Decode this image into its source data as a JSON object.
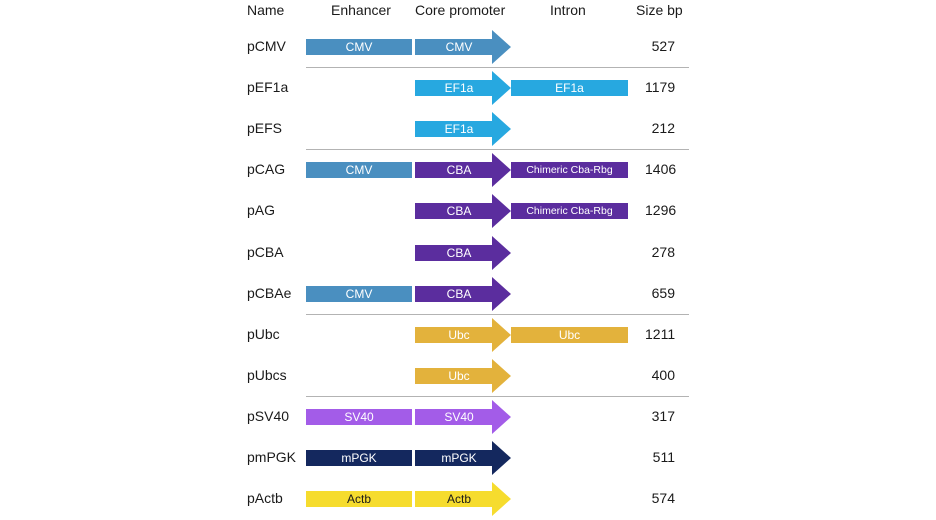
{
  "headers": {
    "name": "Name",
    "enhancer": "Enhancer",
    "core_promoter": "Core promoter",
    "intron": "Intron",
    "size": "Size bp"
  },
  "rows": [
    {
      "name": "pCMV",
      "enhancer": "CMV",
      "core": "CMV",
      "intron": "",
      "size": "527",
      "color": "#4a8fc0",
      "text_color": "#ffffff"
    },
    {
      "name": "pEF1a",
      "enhancer": "",
      "core": "EF1a",
      "intron": "EF1a",
      "size": "1179",
      "color": "#27a8e0",
      "text_color": "#ffffff"
    },
    {
      "name": "pEFS",
      "enhancer": "",
      "core": "EF1a",
      "intron": "",
      "size": "212",
      "color": "#27a8e0",
      "text_color": "#ffffff"
    },
    {
      "name": "pCAG",
      "enhancer": "CMV",
      "enhancer_color": "#4a8fc0",
      "core": "CBA",
      "intron": "Chimeric Cba-Rbg",
      "size": "1406",
      "color": "#5b2d9e",
      "text_color": "#ffffff"
    },
    {
      "name": "pAG",
      "enhancer": "",
      "core": "CBA",
      "intron": "Chimeric Cba-Rbg",
      "size": "1296",
      "color": "#5b2d9e",
      "text_color": "#ffffff"
    },
    {
      "name": "pCBA",
      "enhancer": "",
      "core": "CBA",
      "intron": "",
      "size": "278",
      "color": "#5b2d9e",
      "text_color": "#ffffff"
    },
    {
      "name": "pCBAe",
      "enhancer": "CMV",
      "enhancer_color": "#4a8fc0",
      "core": "CBA",
      "intron": "",
      "size": "659",
      "color": "#5b2d9e",
      "text_color": "#ffffff"
    },
    {
      "name": "pUbc",
      "enhancer": "",
      "core": "Ubc",
      "intron": "Ubc",
      "size": "1211",
      "color": "#e3b23c",
      "text_color": "#ffffff"
    },
    {
      "name": "pUbcs",
      "enhancer": "",
      "core": "Ubc",
      "intron": "",
      "size": "400",
      "color": "#e3b23c",
      "text_color": "#ffffff"
    },
    {
      "name": "pSV40",
      "enhancer": "SV40",
      "core": "SV40",
      "intron": "",
      "size": "317",
      "color": "#a35ce8",
      "text_color": "#ffffff"
    },
    {
      "name": "pmPGK",
      "enhancer": "mPGK",
      "core": "mPGK",
      "intron": "",
      "size": "511",
      "color": "#14285e",
      "text_color": "#ffffff"
    },
    {
      "name": "pActb",
      "enhancer": "Actb",
      "core": "Actb",
      "intron": "",
      "size": "574",
      "color": "#f6dc2e",
      "text_color": "#1a1a1a"
    }
  ],
  "group_separators_after_row": [
    0,
    2,
    6,
    8
  ]
}
